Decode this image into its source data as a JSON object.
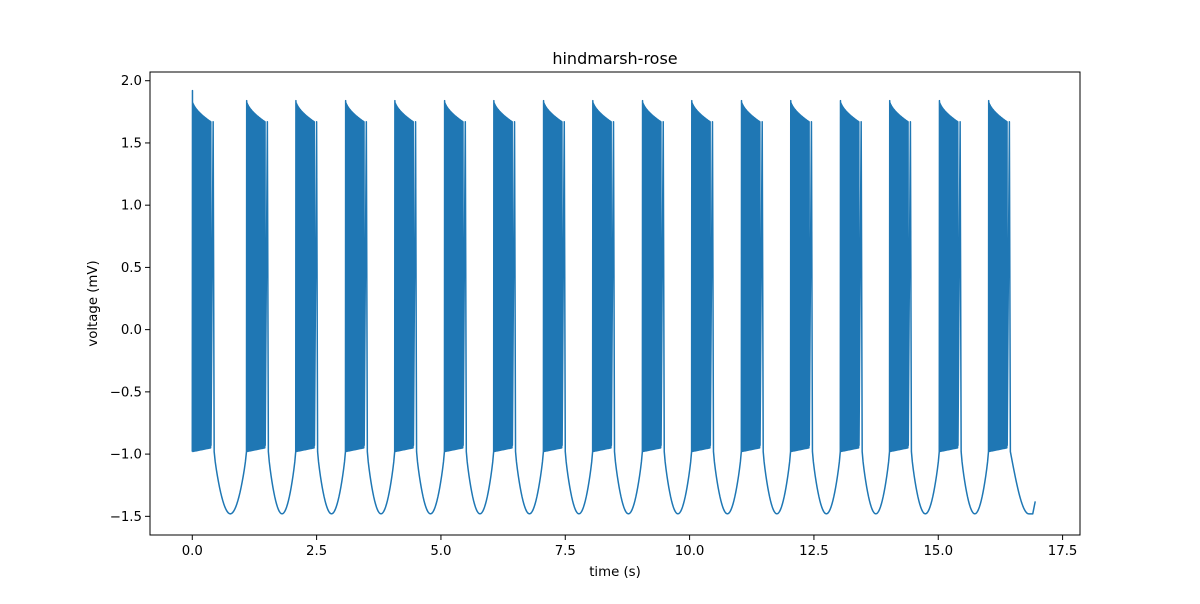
{
  "chart_data": {
    "type": "line",
    "title": "hindmarsh-rose",
    "xlabel": "time (s)",
    "ylabel": "voltage (mV)",
    "xlim": [
      -0.85,
      17.85
    ],
    "ylim": [
      -1.65,
      2.07
    ],
    "x_ticks": [
      0.0,
      2.5,
      5.0,
      7.5,
      10.0,
      12.5,
      15.0,
      17.5
    ],
    "x_tick_labels": [
      "0.0",
      "2.5",
      "5.0",
      "7.5",
      "10.0",
      "12.5",
      "15.0",
      "17.5"
    ],
    "y_ticks": [
      -1.5,
      -1.0,
      -0.5,
      0.0,
      0.5,
      1.0,
      1.5,
      2.0
    ],
    "y_tick_labels": [
      "−1.5",
      "−1.0",
      "−0.5",
      "0.0",
      "0.5",
      "1.0",
      "1.5",
      "2.0"
    ],
    "grid": false,
    "series": [
      {
        "color": "#1f77b4",
        "burst_starts": [
          0.0,
          1.09,
          2.08,
          3.08,
          4.07,
          5.07,
          6.06,
          7.06,
          8.05,
          9.05,
          10.04,
          11.04,
          12.03,
          13.03,
          14.02,
          15.02,
          16.01
        ],
        "burst_duration_s": 0.38,
        "spike_peak_first": 1.92,
        "spike_peak_burst": 1.84,
        "spike_peak_last": 1.67,
        "burst_floor_mV": -0.98,
        "hyperpolarization_min_mV": -1.48,
        "x_end": 16.95,
        "y_end": -1.38
      }
    ]
  }
}
